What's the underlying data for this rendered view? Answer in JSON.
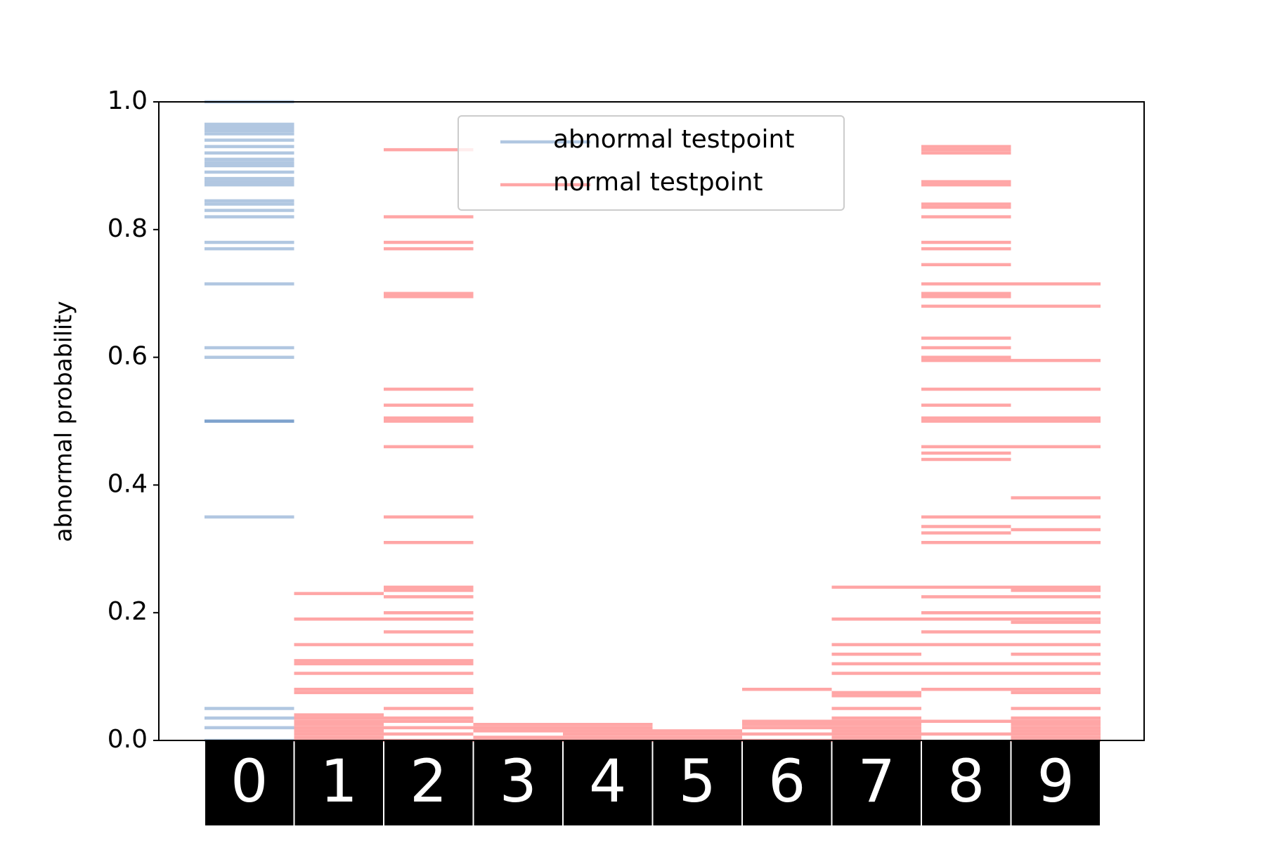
{
  "chart_data": {
    "type": "strip",
    "y_label": "abnormal probability",
    "categories": [
      "0",
      "1",
      "2",
      "3",
      "4",
      "5",
      "6",
      "7",
      "8",
      "9"
    ],
    "ylim": [
      0,
      1
    ],
    "yticks": [
      {
        "value": 0,
        "label": "0.0"
      },
      0.2,
      0.4,
      0.6,
      0.8,
      {
        "value": 1,
        "label": "1.0"
      }
    ],
    "grid": false,
    "legend": "upper center",
    "series": [
      {
        "name": "abnormal testpoint",
        "color": "#1f5fa8",
        "values": [
          [
            0.0,
            0.02,
            0.035,
            0.05,
            0.35,
            0.5,
            0.5,
            0.6,
            0.615,
            0.715,
            0.77,
            0.78,
            0.82,
            0.83,
            0.84,
            0.845,
            0.87,
            0.875,
            0.88,
            0.89,
            0.9,
            0.905,
            0.91,
            0.92,
            0.93,
            0.94,
            0.95,
            0.955,
            0.96,
            0.965,
            1.0
          ],
          [],
          [],
          [],
          [],
          [],
          [],
          [],
          [],
          []
        ]
      },
      {
        "name": "normal testpoint",
        "color": "#ff0000",
        "values": [
          [],
          [
            0.0,
            0.005,
            0.01,
            0.015,
            0.02,
            0.025,
            0.03,
            0.035,
            0.04,
            0.075,
            0.08,
            0.105,
            0.12,
            0.125,
            0.15,
            0.19,
            0.23
          ],
          [
            0.0,
            0.01,
            0.02,
            0.03,
            0.035,
            0.05,
            0.075,
            0.08,
            0.105,
            0.12,
            0.125,
            0.15,
            0.17,
            0.19,
            0.2,
            0.225,
            0.235,
            0.24,
            0.31,
            0.35,
            0.46,
            0.5,
            0.505,
            0.525,
            0.55,
            0.695,
            0.7,
            0.77,
            0.78,
            0.82,
            0.925
          ],
          [
            0.0,
            0.005,
            0.015,
            0.02,
            0.025
          ],
          [
            0.0,
            0.005,
            0.01,
            0.015,
            0.02,
            0.025
          ],
          [
            0.0,
            0.005,
            0.01,
            0.015
          ],
          [
            0.0,
            0.01,
            0.02,
            0.025,
            0.03,
            0.08
          ],
          [
            0.0,
            0.005,
            0.01,
            0.015,
            0.02,
            0.025,
            0.03,
            0.035,
            0.05,
            0.07,
            0.075,
            0.105,
            0.12,
            0.135,
            0.15,
            0.19,
            0.24
          ],
          [
            0.01,
            0.03,
            0.08,
            0.105,
            0.12,
            0.15,
            0.17,
            0.19,
            0.2,
            0.225,
            0.24,
            0.31,
            0.325,
            0.335,
            0.35,
            0.44,
            0.45,
            0.46,
            0.5,
            0.505,
            0.525,
            0.55,
            0.595,
            0.6,
            0.615,
            0.63,
            0.68,
            0.695,
            0.7,
            0.715,
            0.745,
            0.77,
            0.78,
            0.82,
            0.835,
            0.84,
            0.87,
            0.875,
            0.92,
            0.925,
            0.93
          ],
          [
            0.0,
            0.005,
            0.01,
            0.015,
            0.02,
            0.025,
            0.03,
            0.035,
            0.05,
            0.075,
            0.08,
            0.105,
            0.12,
            0.135,
            0.15,
            0.17,
            0.185,
            0.19,
            0.2,
            0.225,
            0.235,
            0.24,
            0.31,
            0.33,
            0.35,
            0.38,
            0.46,
            0.5,
            0.505,
            0.55,
            0.595,
            0.68,
            0.715
          ]
        ]
      }
    ]
  }
}
